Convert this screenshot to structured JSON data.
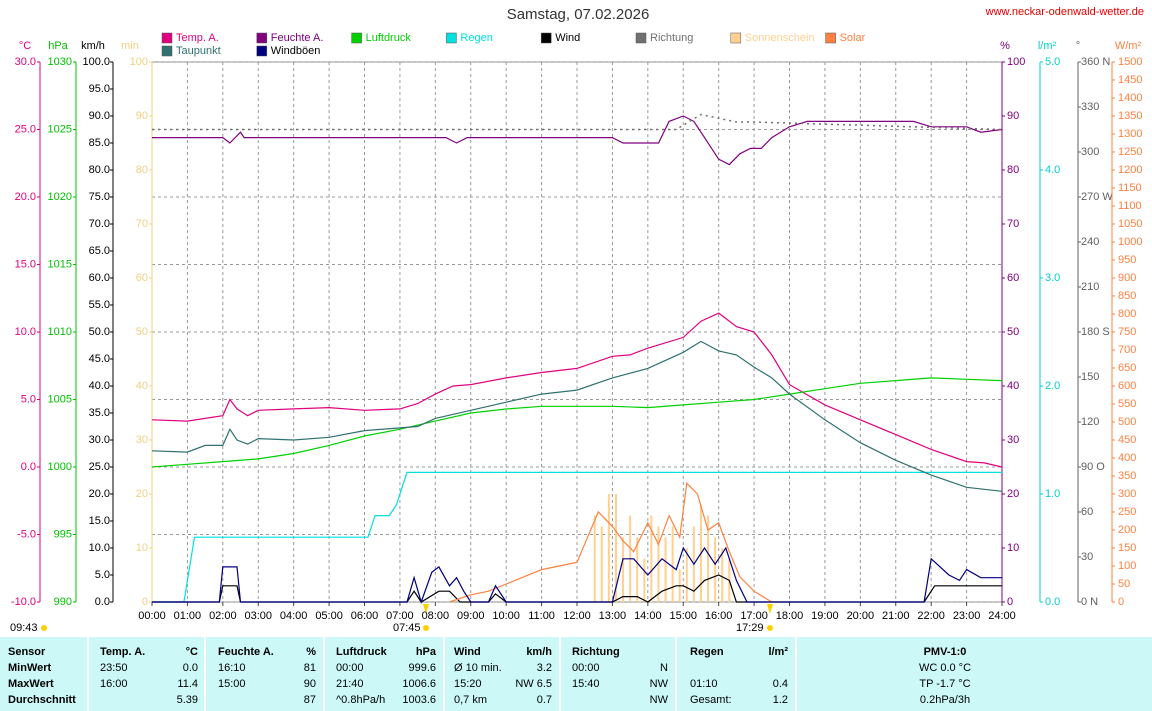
{
  "site": "www.neckar-odenwald-wetter.de",
  "chart_data": {
    "type": "line",
    "title": "Samstag, 07.02.2026",
    "grid": true,
    "xlim": [
      0,
      24
    ],
    "xticks": [
      {
        "value": 0,
        "label": "00:00"
      },
      {
        "value": 1,
        "label": "01:00"
      },
      {
        "value": 2,
        "label": "02:00"
      },
      {
        "value": 3,
        "label": "03:00"
      },
      {
        "value": 4,
        "label": "04:00"
      },
      {
        "value": 5,
        "label": "05:00"
      },
      {
        "value": 6,
        "label": "06:00"
      },
      {
        "value": 7,
        "label": "07:00"
      },
      {
        "value": 8,
        "label": "08:00"
      },
      {
        "value": 9,
        "label": "09:00"
      },
      {
        "value": 10,
        "label": "10:00"
      },
      {
        "value": 11,
        "label": "11:00"
      },
      {
        "value": 12,
        "label": "12:00"
      },
      {
        "value": 13,
        "label": "13:00"
      },
      {
        "value": 14,
        "label": "14:00"
      },
      {
        "value": 15,
        "label": "15:00"
      },
      {
        "value": 16,
        "label": "16:00"
      },
      {
        "value": 17,
        "label": "17:00"
      },
      {
        "value": 18,
        "label": "18:00"
      },
      {
        "value": 19,
        "label": "19:00"
      },
      {
        "value": 20,
        "label": "20:00"
      },
      {
        "value": 21,
        "label": "21:00"
      },
      {
        "value": 22,
        "label": "22:00"
      },
      {
        "value": 23,
        "label": "23:00"
      },
      {
        "value": 24,
        "label": "24:00"
      }
    ],
    "axes": [
      {
        "label": "°C",
        "color": "#e0007f",
        "ylim": [
          -10,
          30
        ],
        "yticks": [
          {
            "value": -10,
            "label": "-10.0"
          },
          {
            "value": -5,
            "label": "-5.0"
          },
          {
            "value": 0,
            "label": "0.0"
          },
          {
            "value": 5,
            "label": "5.0"
          },
          {
            "value": 10,
            "label": "10.0"
          },
          {
            "value": 15,
            "label": "15.0"
          },
          {
            "value": 20,
            "label": "20.0"
          },
          {
            "value": 25,
            "label": "25.0"
          },
          {
            "value": 30,
            "label": "30.0"
          }
        ]
      },
      {
        "label": "hPa",
        "color": "#00c000",
        "ylim": [
          990,
          1030
        ],
        "yticks": [
          990,
          995,
          1000,
          1005,
          1010,
          1015,
          1020,
          1025,
          1030
        ]
      },
      {
        "label": "km/h",
        "color": "#000000",
        "ylim": [
          0,
          100
        ],
        "yticks": [
          {
            "value": 0,
            "label": "0.0"
          },
          {
            "value": 5,
            "label": "5.0"
          },
          {
            "value": 10,
            "label": "10.0"
          },
          {
            "value": 15,
            "label": "15.0"
          },
          {
            "value": 20,
            "label": "20.0"
          },
          {
            "value": 25,
            "label": "25.0"
          },
          {
            "value": 30,
            "label": "30.0"
          },
          {
            "value": 35,
            "label": "35.0"
          },
          {
            "value": 40,
            "label": "40.0"
          },
          {
            "value": 45,
            "label": "45.0"
          },
          {
            "value": 50,
            "label": "50.0"
          },
          {
            "value": 55,
            "label": "55.0"
          },
          {
            "value": 60,
            "label": "60.0"
          },
          {
            "value": 65,
            "label": "65.0"
          },
          {
            "value": 70,
            "label": "70.0"
          },
          {
            "value": 75,
            "label": "75.0"
          },
          {
            "value": 80,
            "label": "80.0"
          },
          {
            "value": 85,
            "label": "85.0"
          },
          {
            "value": 90,
            "label": "90.0"
          },
          {
            "value": 95,
            "label": "95.0"
          },
          {
            "value": 100,
            "label": "100.0"
          }
        ]
      },
      {
        "label": "min",
        "color": "#f0d080",
        "ylim": [
          0,
          100
        ],
        "yticks": [
          0,
          10,
          20,
          30,
          40,
          50,
          60,
          70,
          80,
          90,
          100
        ]
      },
      {
        "label": "%",
        "color": "#800080",
        "ylim": [
          0,
          100
        ],
        "yticks": [
          0,
          10,
          20,
          30,
          40,
          50,
          60,
          70,
          80,
          90,
          100
        ]
      },
      {
        "label": "l/m²",
        "color": "#00d0d0",
        "ylim": [
          0,
          5
        ],
        "yticks": [
          {
            "value": 0,
            "label": "0.0"
          },
          {
            "value": 1,
            "label": "1.0"
          },
          {
            "value": 2,
            "label": "2.0"
          },
          {
            "value": 3,
            "label": "3.0"
          },
          {
            "value": 4,
            "label": "4.0"
          },
          {
            "value": 5,
            "label": "5.0"
          }
        ]
      },
      {
        "label": "°",
        "color": "#606060",
        "ylim": [
          0,
          360
        ],
        "yticks": [
          {
            "value": 0,
            "label": "0 N"
          },
          30,
          60,
          {
            "value": 90,
            "label": "90 O"
          },
          120,
          150,
          {
            "value": 180,
            "label": "180 S"
          },
          210,
          240,
          {
            "value": 270,
            "label": "270 W"
          },
          300,
          330,
          {
            "value": 360,
            "label": "360 N"
          }
        ]
      },
      {
        "label": "W/m²",
        "color": "#ff8040",
        "ylim": [
          0,
          1500
        ],
        "yticks": [
          0,
          50,
          100,
          150,
          200,
          250,
          300,
          350,
          400,
          450,
          500,
          550,
          600,
          650,
          700,
          750,
          800,
          850,
          900,
          950,
          1000,
          1050,
          1100,
          1150,
          1200,
          1250,
          1300,
          1350,
          1400,
          1450,
          1500
        ]
      }
    ],
    "series": [
      {
        "name": "Temp. A.",
        "type": "line",
        "axis": "°C",
        "color": "#e0007f",
        "x": [
          0,
          1,
          1.5,
          2,
          2.2,
          2.4,
          2.7,
          3,
          4,
          5,
          6,
          7,
          7.5,
          8,
          8.5,
          9,
          10,
          11,
          12,
          13,
          13.5,
          14,
          15,
          15.5,
          16,
          16.5,
          17,
          17.5,
          18,
          19,
          20,
          21,
          22,
          23,
          23.5,
          24
        ],
        "values": [
          3.5,
          3.4,
          3.6,
          3.8,
          5.0,
          4.3,
          3.8,
          4.2,
          4.3,
          4.4,
          4.2,
          4.3,
          4.7,
          5.4,
          6.0,
          6.1,
          6.6,
          7.0,
          7.3,
          8.2,
          8.3,
          8.8,
          9.6,
          10.8,
          11.4,
          10.4,
          10.0,
          8.3,
          6.1,
          4.6,
          3.5,
          2.4,
          1.3,
          0.4,
          0.3,
          0.0
        ]
      },
      {
        "name": "Feuchte A.",
        "type": "line",
        "axis": "%",
        "color": "#800080",
        "x": [
          0,
          2,
          2.2,
          2.5,
          2.6,
          8,
          8.3,
          8.6,
          8.9,
          13,
          13.3,
          14.3,
          14.6,
          15,
          15.3,
          15.6,
          16,
          16.3,
          16.6,
          16.9,
          17.2,
          17.5,
          18,
          18.5,
          21.5,
          22,
          23,
          23.4,
          24
        ],
        "values": [
          86,
          86,
          85,
          87,
          86,
          86,
          86,
          85,
          86,
          86,
          85,
          85,
          89,
          90,
          89,
          86,
          82,
          81,
          83,
          84,
          84,
          86,
          88,
          89,
          89,
          88,
          88,
          87,
          87.5
        ]
      },
      {
        "name": "Luftdruck",
        "type": "line",
        "axis": "hPa",
        "color": "#00d000",
        "x": [
          0,
          1,
          2,
          3,
          4,
          5,
          6,
          7,
          8,
          9,
          10,
          11,
          12,
          13,
          14,
          15,
          16,
          17,
          18,
          19,
          20,
          21,
          22,
          23,
          24
        ],
        "values": [
          1000.0,
          1000.2,
          1000.4,
          1000.6,
          1001.0,
          1001.6,
          1002.3,
          1002.8,
          1003.4,
          1004.0,
          1004.3,
          1004.5,
          1004.5,
          1004.5,
          1004.4,
          1004.6,
          1004.8,
          1005.0,
          1005.4,
          1005.8,
          1006.2,
          1006.4,
          1006.6,
          1006.5,
          1006.4
        ]
      },
      {
        "name": "Regen",
        "type": "line",
        "axis": "l/m²",
        "color": "#00e0e0",
        "x": [
          0,
          0.9,
          1.2,
          6.1,
          6.3,
          6.7,
          6.9,
          7.2,
          7.3,
          24
        ],
        "values": [
          0,
          0,
          0.6,
          0.6,
          0.8,
          0.8,
          0.9,
          1.2,
          1.2,
          1.2
        ]
      },
      {
        "name": "Wind",
        "type": "line",
        "axis": "km/h",
        "color": "#000000",
        "x": [
          0,
          1.9,
          2,
          2.4,
          2.5,
          7.2,
          7.4,
          7.6,
          8.1,
          8.4,
          8.7,
          9.0,
          9.5,
          9.7,
          10,
          13,
          13.3,
          13.7,
          14,
          14.4,
          14.8,
          15,
          15.3,
          15.6,
          16,
          16.3,
          16.5,
          21.8,
          22.1,
          22.5,
          24
        ],
        "values": [
          0,
          0,
          3,
          3,
          0,
          0,
          2,
          0,
          2,
          2,
          0,
          0,
          0,
          1.5,
          0,
          0,
          1,
          1,
          0,
          2,
          3,
          3,
          2,
          4,
          5,
          4,
          0,
          0,
          3,
          3,
          3
        ]
      },
      {
        "name": "Richtung",
        "type": "dotted",
        "axis": "°",
        "color": "#707070",
        "x": [
          0,
          14.8,
          15.5,
          16.5,
          17,
          24
        ],
        "values": [
          315,
          315,
          325,
          320,
          320,
          315
        ]
      },
      {
        "name": "Sonnenschein",
        "type": "bar",
        "axis": "min",
        "color": "#ffd090",
        "x": [
          12.5,
          12.7,
          12.9,
          13.1,
          13.3,
          13.5,
          13.7,
          13.9,
          14.1,
          14.3,
          14.5,
          14.7,
          14.9,
          15.1,
          15.3,
          15.5,
          15.7,
          15.9,
          16.1,
          16.3
        ],
        "values": [
          16,
          14,
          20,
          20,
          12,
          16,
          12,
          8,
          16,
          14,
          12,
          14,
          6,
          10,
          14,
          18,
          16,
          12,
          10,
          8
        ]
      },
      {
        "name": "Solar",
        "type": "line",
        "axis": "W/m²",
        "color": "#ff8040",
        "x": [
          8.4,
          9,
          9.5,
          10,
          10.5,
          11,
          11.5,
          12,
          12.3,
          12.6,
          13,
          13.3,
          13.6,
          14,
          14.3,
          14.6,
          14.9,
          15.1,
          15.4,
          15.7,
          16,
          16.3,
          16.6,
          17,
          17.5
        ],
        "values": [
          0,
          20,
          30,
          50,
          70,
          90,
          100,
          110,
          180,
          250,
          210,
          170,
          140,
          220,
          160,
          240,
          180,
          330,
          300,
          200,
          220,
          140,
          70,
          30,
          0
        ]
      },
      {
        "name": "Taupunkt",
        "type": "line",
        "axis": "°C",
        "color": "#307070",
        "x": [
          0,
          1,
          1.5,
          2,
          2.2,
          2.4,
          2.7,
          3,
          4,
          5,
          6,
          7,
          7.5,
          8,
          9,
          10,
          11,
          12,
          13,
          14,
          15,
          15.5,
          16,
          16.5,
          17,
          17.5,
          18,
          19,
          20,
          21,
          22,
          23,
          24
        ],
        "values": [
          1.2,
          1.1,
          1.6,
          1.6,
          2.8,
          2.0,
          1.7,
          2.1,
          2.0,
          2.2,
          2.7,
          2.9,
          3.0,
          3.6,
          4.2,
          4.8,
          5.4,
          5.7,
          6.6,
          7.3,
          8.5,
          9.3,
          8.6,
          8.3,
          7.4,
          6.6,
          5.4,
          3.5,
          1.8,
          0.5,
          -0.6,
          -1.5,
          -1.8
        ]
      },
      {
        "name": "Windböen",
        "type": "line",
        "axis": "km/h",
        "color": "#000080",
        "x": [
          0,
          1.9,
          2,
          2.4,
          2.5,
          7.2,
          7.4,
          7.6,
          7.9,
          8.1,
          8.4,
          8.6,
          8.8,
          9,
          9.5,
          9.7,
          10,
          13,
          13.3,
          13.6,
          14,
          14.4,
          14.8,
          15,
          15.3,
          15.6,
          15.9,
          16.2,
          16.5,
          16.8,
          21.8,
          22,
          22.5,
          22.8,
          23,
          23.4,
          24
        ],
        "values": [
          0,
          0,
          6.5,
          6.5,
          0,
          0,
          4.5,
          0,
          5.5,
          6.5,
          3,
          4.5,
          2,
          0,
          0,
          3,
          0,
          0,
          8,
          8,
          5,
          8,
          6,
          10,
          7,
          10,
          7,
          10,
          4,
          0,
          0,
          8,
          5,
          4,
          6,
          4.5,
          4.5
        ]
      }
    ],
    "annotations": [
      "09:43",
      "07:45",
      "17:29"
    ]
  },
  "table": {
    "header": [
      "Sensor",
      "Temp. A.",
      "°C",
      "Feuchte A.",
      "%",
      "Luftdruck",
      "hPa",
      "Wind",
      "km/h",
      "Richtung",
      null,
      "Regen",
      "l/m²",
      "PMV-1:0"
    ],
    "rows": [
      [
        "MinWert",
        "23:50",
        "0.0",
        "16:10",
        "81",
        "00:00",
        "999.6",
        "Ø 10 min.",
        "3.2",
        "00:00",
        "N",
        null,
        null,
        "WC 0.0 °C"
      ],
      [
        "MaxWert",
        "16:00",
        "11.4",
        "15:00",
        "90",
        "21:40",
        "1006.6",
        "15:20",
        "NW 6.5",
        "15:40",
        "NW",
        "01:10",
        "0.4",
        "TP -1.7 °C"
      ],
      [
        "Durchschnitt",
        null,
        "5.39",
        null,
        "87",
        "^0.8hPa/h",
        "1003.6",
        "0,7 km",
        "0.7",
        null,
        "NW",
        "Gesamt:",
        "1.2",
        "0.2hPa/3h"
      ]
    ]
  }
}
